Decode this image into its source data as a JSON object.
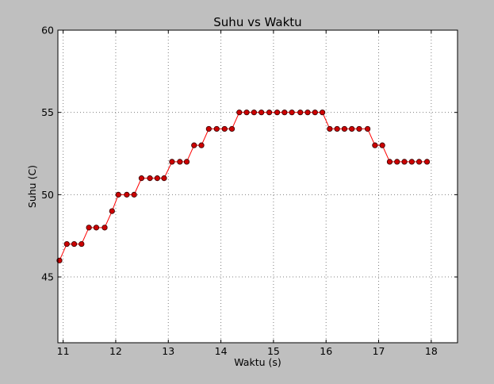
{
  "chart_data": {
    "type": "line",
    "title": "Suhu vs Waktu",
    "xlabel": "Waktu (s)",
    "ylabel": "Suhu (C)",
    "xlim": [
      10.9,
      18.5
    ],
    "ylim": [
      41,
      60
    ],
    "xticks": [
      11,
      12,
      13,
      14,
      15,
      16,
      17,
      18
    ],
    "yticks": [
      45,
      50,
      55,
      60
    ],
    "grid": true,
    "colors": {
      "line": "#ff0000",
      "marker_fill": "#cc0000",
      "marker_edge": "#330000",
      "figure_bg": "#bfbfbf",
      "axes_bg": "#ffffff",
      "grid": "#808080"
    },
    "series": [
      {
        "x": [
          10.93,
          11.07,
          11.21,
          11.35,
          11.49,
          11.63,
          11.79,
          11.93,
          12.05,
          12.21,
          12.35,
          12.49,
          12.65,
          12.79,
          12.92,
          13.07,
          13.22,
          13.35,
          13.49,
          13.63,
          13.77,
          13.92,
          14.07,
          14.21,
          14.35,
          14.49,
          14.63,
          14.77,
          14.92,
          15.07,
          15.21,
          15.35,
          15.51,
          15.65,
          15.79,
          15.93,
          16.07,
          16.21,
          16.35,
          16.49,
          16.63,
          16.79,
          16.93,
          17.07,
          17.21,
          17.35,
          17.49,
          17.63,
          17.77,
          17.92
        ],
        "y": [
          46,
          47,
          47,
          47,
          48,
          48,
          48,
          49,
          50,
          50,
          50,
          51,
          51,
          51,
          51,
          52,
          52,
          52,
          53,
          53,
          54,
          54,
          54,
          54,
          55,
          55,
          55,
          55,
          55,
          55,
          55,
          55,
          55,
          55,
          55,
          55,
          54,
          54,
          54,
          54,
          54,
          54,
          53,
          53,
          52,
          52,
          52,
          52,
          52,
          52
        ]
      }
    ]
  }
}
